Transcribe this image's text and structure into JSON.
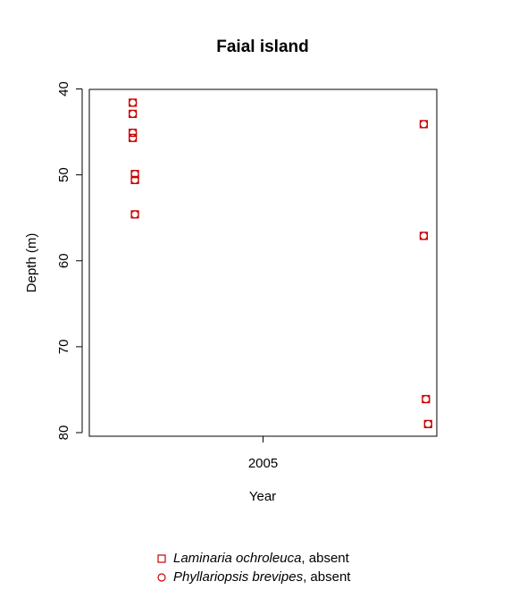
{
  "chart_data": {
    "type": "scatter",
    "title": "Faial island",
    "xlabel": "Year",
    "ylabel": "Depth (m)",
    "y_reversed": true,
    "ylim": [
      80,
      40
    ],
    "y_ticks": [
      "40",
      "50",
      "60",
      "70",
      "80"
    ],
    "x_ticks": [
      "2005"
    ],
    "marker_color": "#cc0000",
    "legend_position": "bottom-center",
    "series": [
      {
        "name": "Laminaria ochroleuca",
        "status": ", absent",
        "marker": "square",
        "points": [
          {
            "x": 2002.0,
            "y": 41.6
          },
          {
            "x": 2002.0,
            "y": 42.9
          },
          {
            "x": 2002.0,
            "y": 45.1
          },
          {
            "x": 2002.0,
            "y": 45.7
          },
          {
            "x": 2002.05,
            "y": 49.9
          },
          {
            "x": 2002.05,
            "y": 50.6
          },
          {
            "x": 2002.05,
            "y": 54.6
          },
          {
            "x": 2008.7,
            "y": 44.1
          },
          {
            "x": 2008.7,
            "y": 57.1
          },
          {
            "x": 2008.75,
            "y": 76.1
          },
          {
            "x": 2008.8,
            "y": 79.0
          }
        ]
      },
      {
        "name": "Phyllariopsis brevipes",
        "status": ", absent",
        "marker": "circle",
        "points": [
          {
            "x": 2002.0,
            "y": 41.6
          },
          {
            "x": 2002.0,
            "y": 42.9
          },
          {
            "x": 2002.0,
            "y": 45.1
          },
          {
            "x": 2002.0,
            "y": 45.7
          },
          {
            "x": 2002.05,
            "y": 49.9
          },
          {
            "x": 2002.05,
            "y": 50.6
          },
          {
            "x": 2002.05,
            "y": 54.6
          },
          {
            "x": 2008.7,
            "y": 44.1
          },
          {
            "x": 2008.7,
            "y": 57.1
          },
          {
            "x": 2008.75,
            "y": 76.1
          },
          {
            "x": 2008.8,
            "y": 79.0
          }
        ]
      }
    ]
  }
}
